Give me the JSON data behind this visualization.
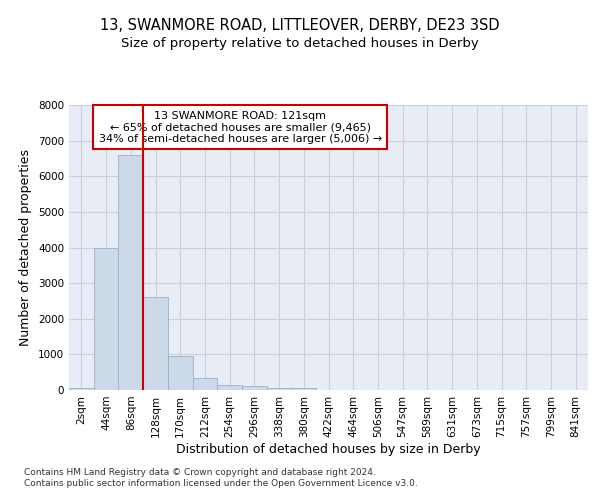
{
  "title_line1": "13, SWANMORE ROAD, LITTLEOVER, DERBY, DE23 3SD",
  "title_line2": "Size of property relative to detached houses in Derby",
  "xlabel": "Distribution of detached houses by size in Derby",
  "ylabel": "Number of detached properties",
  "categories": [
    "2sqm",
    "44sqm",
    "86sqm",
    "128sqm",
    "170sqm",
    "212sqm",
    "254sqm",
    "296sqm",
    "338sqm",
    "380sqm",
    "422sqm",
    "464sqm",
    "506sqm",
    "547sqm",
    "589sqm",
    "631sqm",
    "673sqm",
    "715sqm",
    "757sqm",
    "799sqm",
    "841sqm"
  ],
  "values": [
    50,
    4000,
    6600,
    2600,
    950,
    330,
    150,
    100,
    50,
    50,
    10,
    0,
    0,
    0,
    0,
    0,
    0,
    0,
    0,
    0,
    0
  ],
  "bar_color": "#ccd9e8",
  "bar_edge_color": "#9ab0c8",
  "vline_color": "#cc0000",
  "vline_x_idx": 2.5,
  "annotation_text": "13 SWANMORE ROAD: 121sqm\n← 65% of detached houses are smaller (9,465)\n34% of semi-detached houses are larger (5,006) →",
  "annotation_box_color": "#ffffff",
  "annotation_box_edge": "#cc0000",
  "ylim": [
    0,
    8000
  ],
  "yticks": [
    0,
    1000,
    2000,
    3000,
    4000,
    5000,
    6000,
    7000,
    8000
  ],
  "grid_color": "#c8d0db",
  "background_color": "#e8ecf4",
  "footer_text": "Contains HM Land Registry data © Crown copyright and database right 2024.\nContains public sector information licensed under the Open Government Licence v3.0.",
  "title_fontsize": 10.5,
  "subtitle_fontsize": 9.5,
  "axis_label_fontsize": 9,
  "tick_fontsize": 7.5,
  "annotation_fontsize": 8,
  "footer_fontsize": 6.5
}
